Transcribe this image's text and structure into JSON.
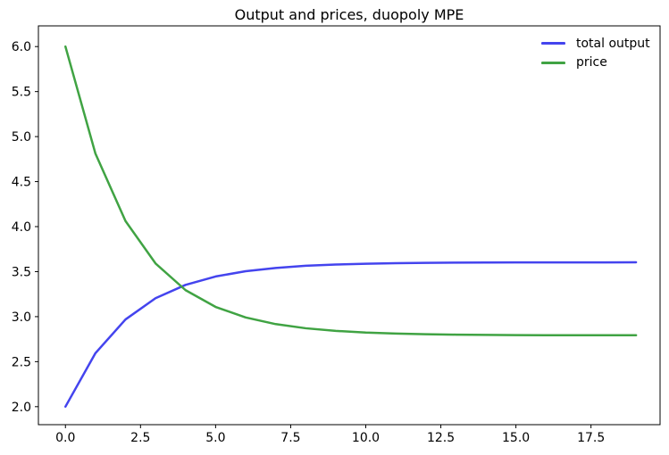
{
  "chart_data": {
    "type": "line",
    "title": "Output and prices, duopoly MPE",
    "x": [
      0,
      1,
      2,
      3,
      4,
      5,
      6,
      7,
      8,
      9,
      10,
      11,
      12,
      13,
      14,
      15,
      16,
      17,
      18,
      19
    ],
    "series": [
      {
        "name": "total output",
        "color": "#4444ee",
        "values": [
          2.0,
          2.595,
          2.969,
          3.205,
          3.353,
          3.446,
          3.505,
          3.541,
          3.565,
          3.579,
          3.588,
          3.594,
          3.598,
          3.6,
          3.601,
          3.602,
          3.603,
          3.603,
          3.603,
          3.604
        ]
      },
      {
        "name": "price",
        "color": "#40a343",
        "values": [
          6.0,
          4.81,
          4.062,
          3.591,
          3.294,
          3.108,
          2.991,
          2.917,
          2.871,
          2.842,
          2.823,
          2.812,
          2.805,
          2.8,
          2.797,
          2.795,
          2.794,
          2.793,
          2.793,
          2.793
        ]
      }
    ],
    "x_ticks": [
      "0.0",
      "2.5",
      "5.0",
      "7.5",
      "10.0",
      "12.5",
      "15.0",
      "17.5"
    ],
    "y_ticks": [
      "2.0",
      "2.5",
      "3.0",
      "3.5",
      "4.0",
      "4.5",
      "5.0",
      "5.5",
      "6.0"
    ],
    "xlim": [
      -0.9,
      19.8
    ],
    "ylim": [
      1.8,
      6.23
    ],
    "grid": false,
    "legend_position": "upper right",
    "axis_color": "#000000"
  }
}
